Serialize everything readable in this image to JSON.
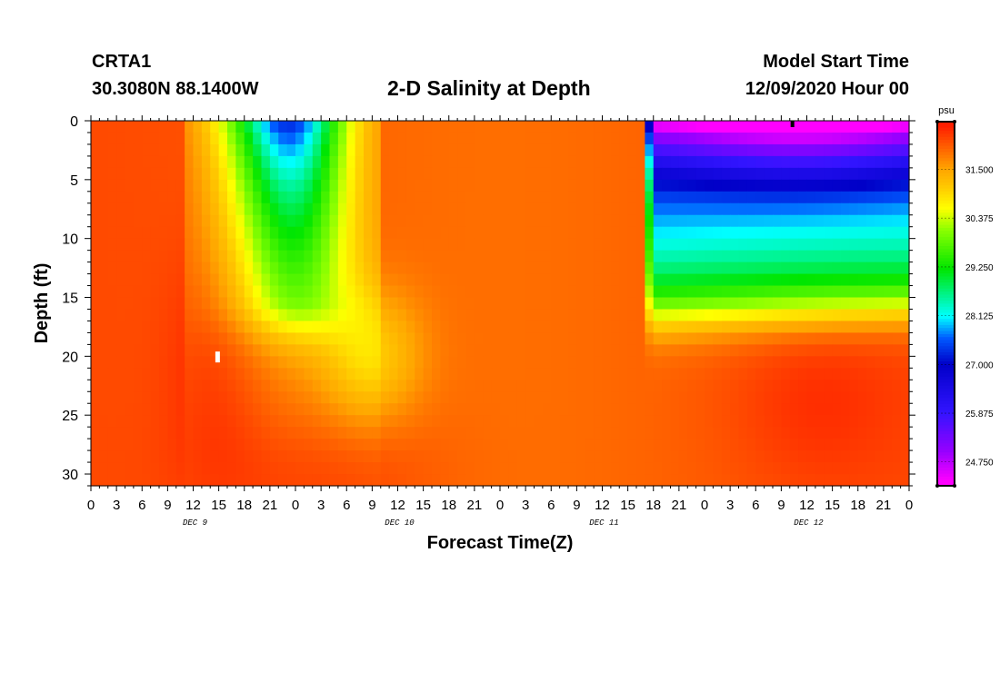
{
  "header": {
    "station_id": "CRTA1",
    "coords": "30.3080N 88.1400W",
    "title": "2-D Salinity at Depth",
    "model_start_label": "Model Start Time",
    "model_start_value": "12/09/2020 Hour 00"
  },
  "chart_data": {
    "type": "heatmap",
    "title": "2-D Salinity at Depth",
    "xlabel": "Forecast Time(Z)",
    "ylabel": "Depth (ft)",
    "x_tick_labels": [
      "0",
      "3",
      "6",
      "9",
      "12",
      "15",
      "18",
      "21",
      "0",
      "3",
      "6",
      "9",
      "12",
      "15",
      "18",
      "21",
      "0",
      "3",
      "6",
      "9",
      "12",
      "15",
      "18",
      "21",
      "0",
      "3",
      "6",
      "9",
      "12",
      "15",
      "18",
      "21",
      "0"
    ],
    "x_range_hours": [
      0,
      96
    ],
    "day_labels": [
      {
        "label": "DEC 9",
        "hour": 12
      },
      {
        "label": "DEC 10",
        "hour": 36
      },
      {
        "label": "DEC 11",
        "hour": 60
      },
      {
        "label": "DEC 12",
        "hour": 84
      }
    ],
    "y_ticks": [
      0,
      5,
      10,
      15,
      20,
      25,
      30
    ],
    "y_range_ft": [
      0,
      31
    ],
    "colorbar": {
      "unit": "psu",
      "ticks": [
        "31.500",
        "30.375",
        "29.250",
        "28.125",
        "27.000",
        "25.875",
        "24.750"
      ],
      "tick_values": [
        31.5,
        30.375,
        29.25,
        28.125,
        27.0,
        25.875,
        24.75
      ],
      "range": [
        24.2,
        32.6
      ],
      "colors": [
        "#ff2400",
        "#ff7300",
        "#ffa500",
        "#ffe600",
        "#e0ff00",
        "#00e600",
        "#00ffff",
        "#0040ff",
        "#0000c0",
        "#8000ff",
        "#ff00ff"
      ]
    },
    "field_description": "salinity psu as function of forecast hour (x) and depth ft (y)"
  }
}
